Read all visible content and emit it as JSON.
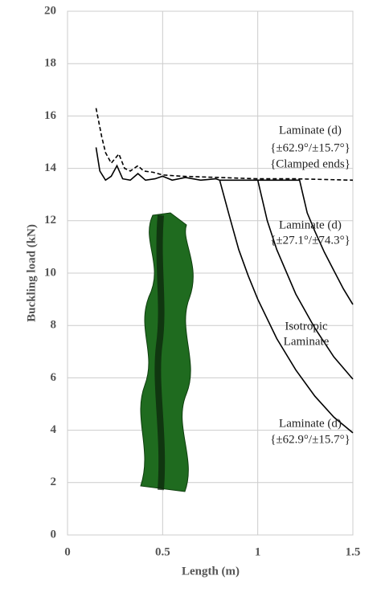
{
  "chart_data": {
    "type": "line",
    "xlabel": "Length (m)",
    "ylabel": "Buckling load (kN)",
    "xlim": [
      0,
      1.5
    ],
    "xticks": [
      0,
      0.5,
      1,
      1.5
    ],
    "ylim": [
      0,
      20
    ],
    "yticks": [
      0,
      2,
      4,
      6,
      8,
      10,
      12,
      14,
      16,
      18,
      20
    ],
    "grid": true,
    "series": [
      {
        "color": "#000000",
        "dash": true,
        "x": [
          0.15,
          0.18,
          0.2,
          0.23,
          0.27,
          0.3,
          0.33,
          0.37,
          0.4,
          0.45,
          0.5,
          0.6,
          0.8,
          1.0,
          1.2,
          1.5
        ],
        "y": [
          16.3,
          15.2,
          14.6,
          14.2,
          14.55,
          14.0,
          13.9,
          14.1,
          13.9,
          13.85,
          13.75,
          13.7,
          13.65,
          13.6,
          13.6,
          13.55
        ]
      },
      {
        "color": "#000000",
        "dash": false,
        "x": [
          0.15,
          0.17,
          0.2,
          0.23,
          0.26,
          0.29,
          0.33,
          0.37,
          0.41,
          0.46,
          0.5,
          0.55,
          0.62,
          0.7,
          0.78,
          0.8,
          0.85,
          0.9,
          0.95,
          1.0,
          1.1,
          1.2,
          1.3,
          1.4,
          1.5
        ],
        "y": [
          14.8,
          13.9,
          13.55,
          13.7,
          14.1,
          13.6,
          13.55,
          13.8,
          13.55,
          13.6,
          13.7,
          13.55,
          13.65,
          13.55,
          13.6,
          13.55,
          12.2,
          10.9,
          9.9,
          9.0,
          7.5,
          6.3,
          5.3,
          4.5,
          3.9
        ]
      },
      {
        "color": "#000000",
        "dash": false,
        "x": [
          0.8,
          0.9,
          1.0,
          1.05,
          1.1,
          1.2,
          1.3,
          1.4,
          1.5
        ],
        "y": [
          13.55,
          13.55,
          13.55,
          12.0,
          10.9,
          9.2,
          7.9,
          6.8,
          5.95
        ]
      },
      {
        "color": "#000000",
        "dash": false,
        "x": [
          1.0,
          1.1,
          1.22,
          1.26,
          1.3,
          1.35,
          1.4,
          1.45,
          1.5
        ],
        "y": [
          13.55,
          13.55,
          13.55,
          12.3,
          11.6,
          10.8,
          10.1,
          9.4,
          8.8
        ]
      }
    ],
    "annotations": [
      "Laminate (d)",
      "{±62.9°/±15.7°}",
      "{Clamped ends}",
      "Laminate (d)",
      "{±27.1°/±74.3°}",
      "Isotropic",
      "Laminate",
      "Laminate (d)",
      "{±62.9°/±15.7°}"
    ]
  }
}
